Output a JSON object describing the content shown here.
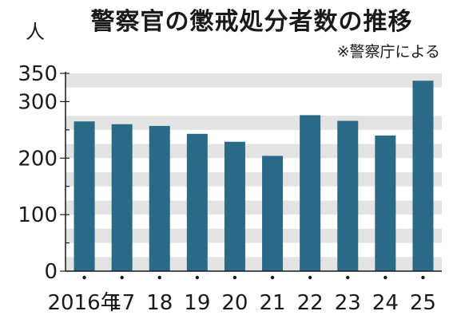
{
  "chart_data": {
    "type": "bar",
    "title": "警察官の懲戒処分者数の推移",
    "source": "※警察庁による",
    "ylabel": "人",
    "categories": [
      "2016年",
      "17",
      "18",
      "19",
      "20",
      "21",
      "22",
      "23",
      "24",
      "25"
    ],
    "values": [
      265,
      260,
      257,
      243,
      229,
      204,
      276,
      266,
      240,
      337
    ],
    "ylim": [
      0,
      350
    ],
    "yticks": [
      0,
      100,
      200,
      300,
      350
    ],
    "grid": true,
    "legend": "none",
    "colors": {
      "bar": "#2b6a86",
      "band": "#e3e3e3",
      "axis": "#1a1a1a"
    }
  }
}
